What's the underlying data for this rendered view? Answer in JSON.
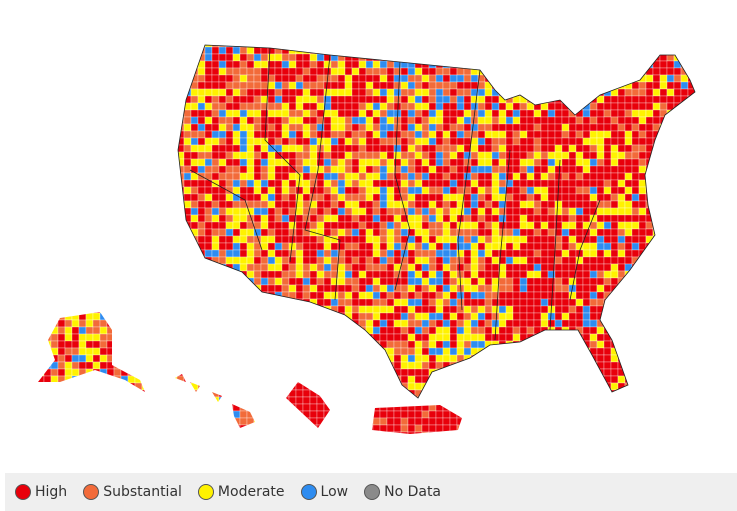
{
  "legend": {
    "items": [
      {
        "label": "High",
        "color": "#e8000b"
      },
      {
        "label": "Substantial",
        "color": "#f26b3a"
      },
      {
        "label": "Moderate",
        "color": "#fff200"
      },
      {
        "label": "Low",
        "color": "#2e8cf0"
      },
      {
        "label": "No Data",
        "color": "#8a8a8a"
      }
    ]
  }
}
